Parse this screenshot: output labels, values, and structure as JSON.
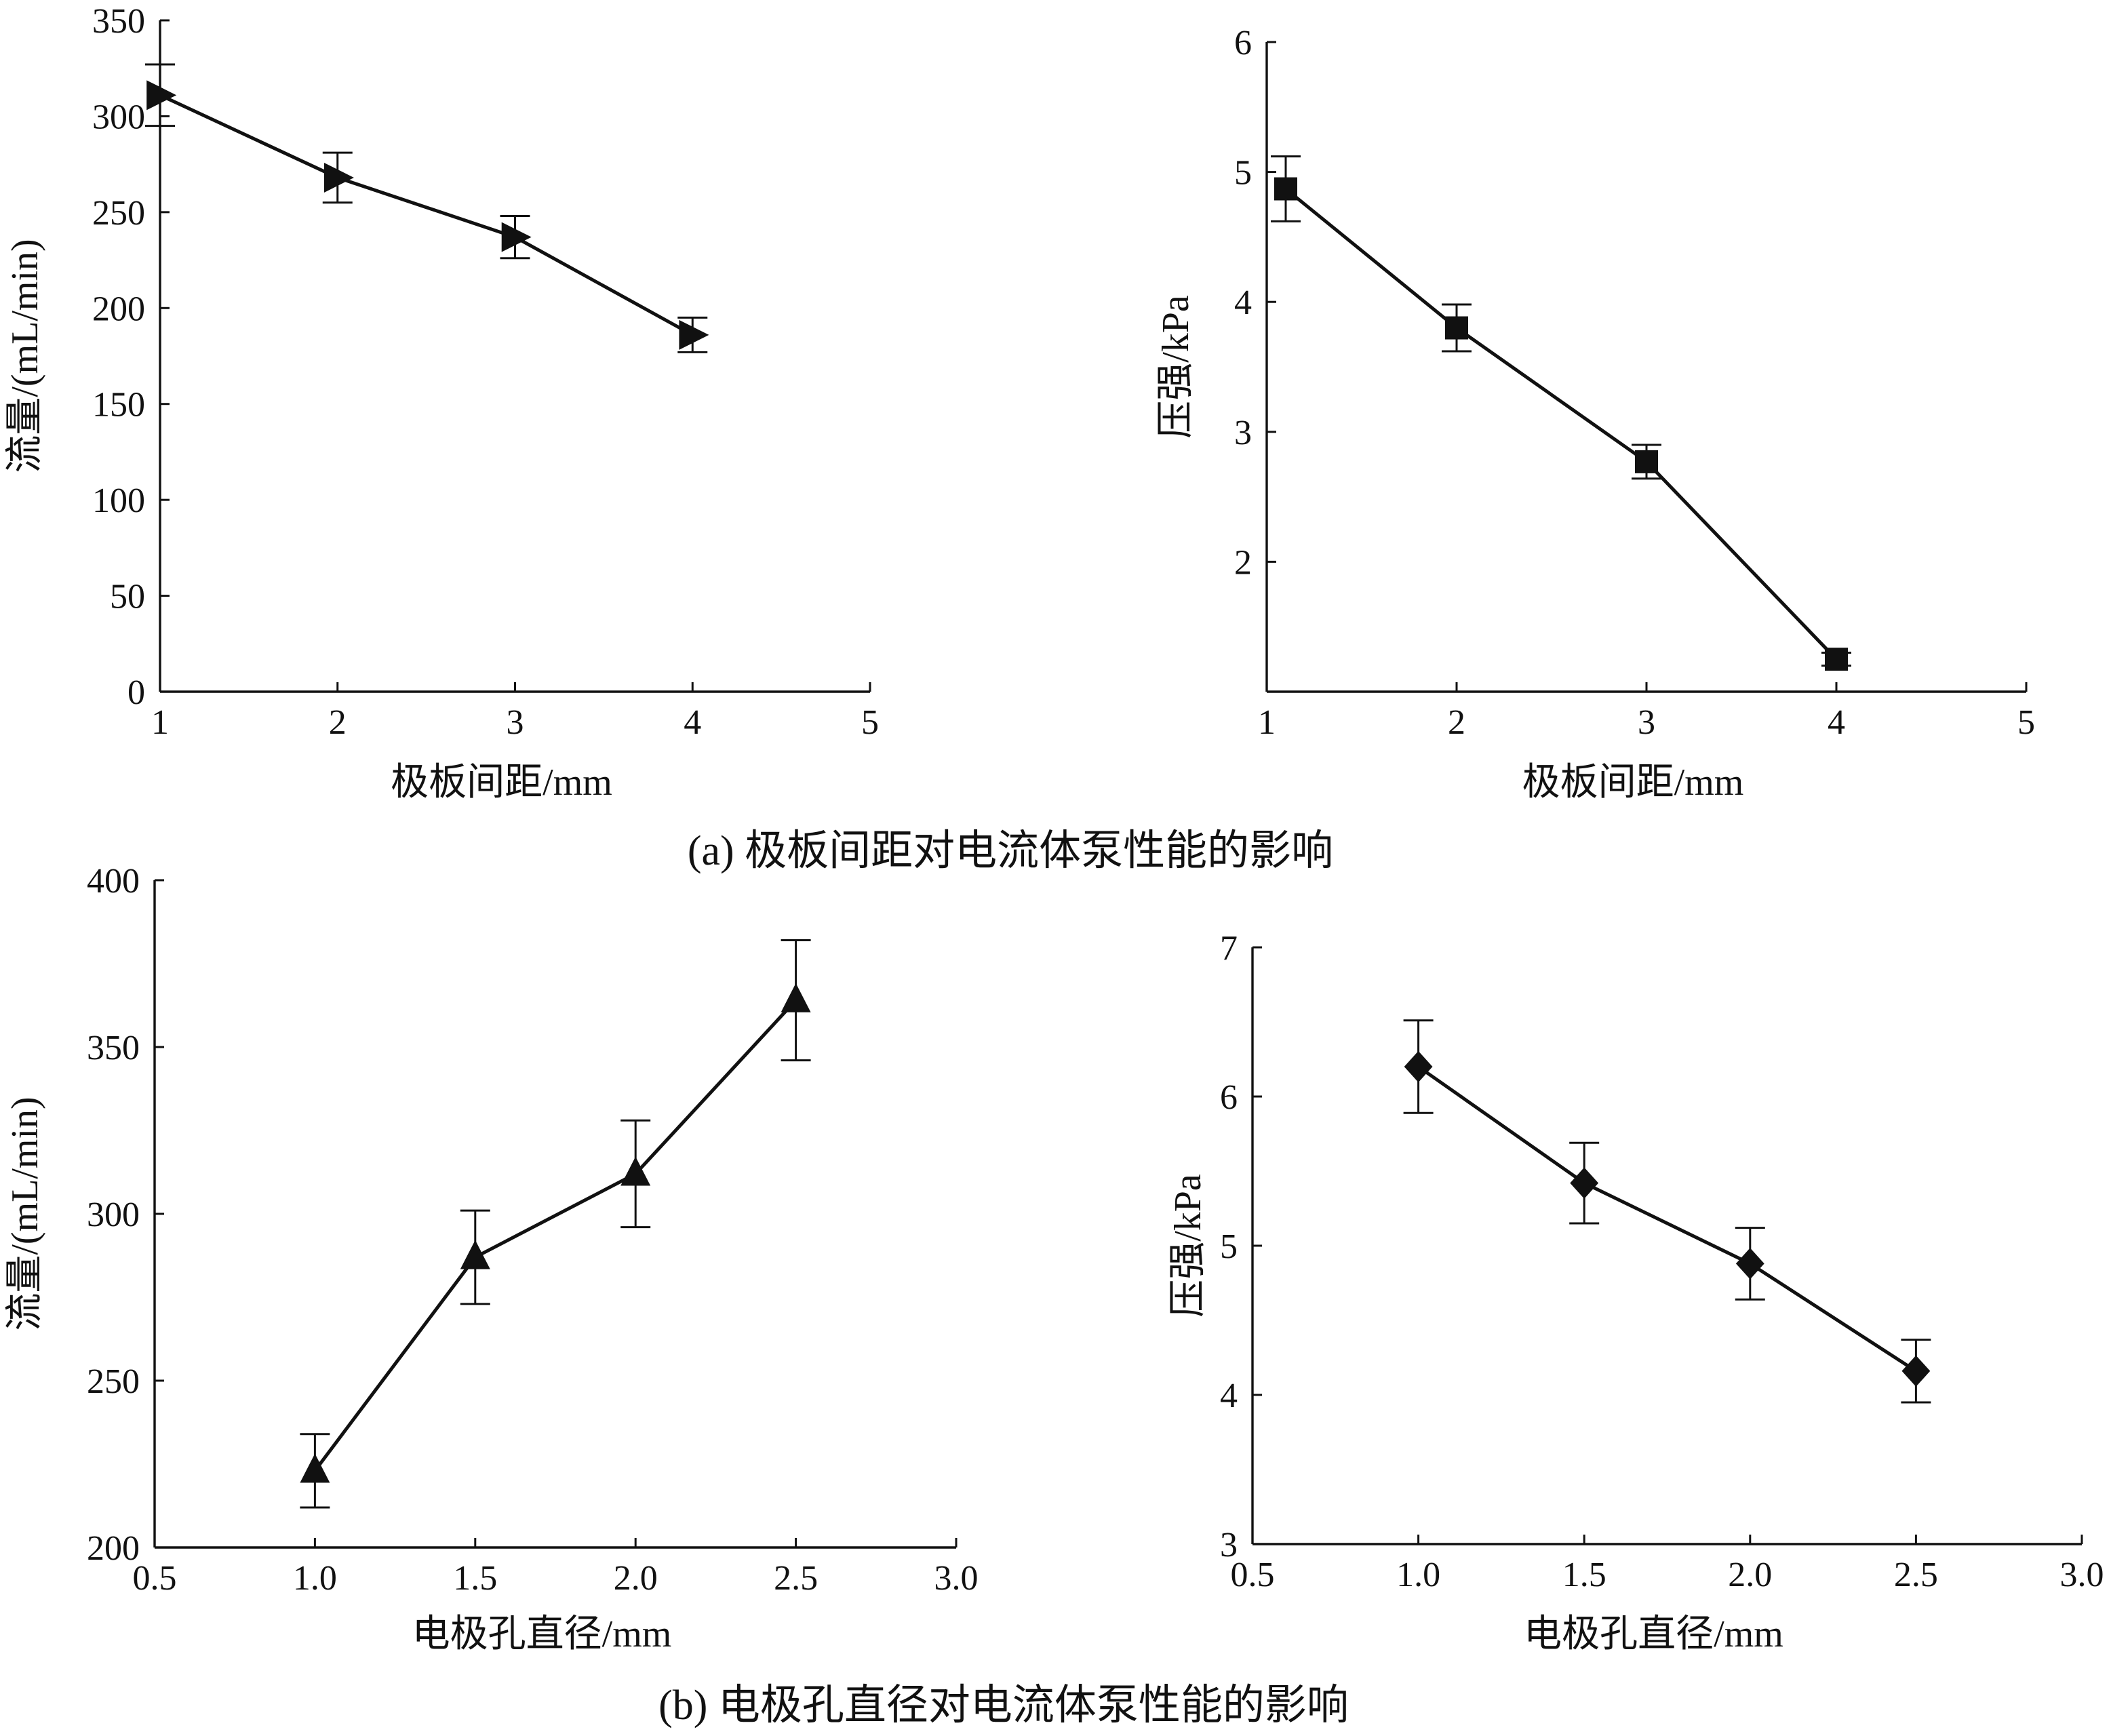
{
  "captions": {
    "a": "(a)  极板间距对电流体泵性能的影响",
    "b": "(b)  电极孔直径对电流体泵性能的影响"
  },
  "chart_data": [
    {
      "id": "a1",
      "type": "line",
      "xlabel": "极板间距/mm",
      "ylabel": "流量/(mL/min)",
      "xlim": [
        1,
        5
      ],
      "ylim": [
        0,
        350
      ],
      "xticks": [
        "1",
        "2",
        "3",
        "4",
        "5"
      ],
      "xtick_values": [
        1,
        2,
        3,
        4,
        5
      ],
      "yticks": [
        "0",
        "50",
        "100",
        "150",
        "200",
        "250",
        "300",
        "350"
      ],
      "ytick_values": [
        0,
        50,
        100,
        150,
        200,
        250,
        300,
        350
      ],
      "marker": "triangle-right",
      "series": [
        {
          "x": [
            1,
            2,
            3,
            4
          ],
          "y": [
            311,
            268,
            237,
            186
          ],
          "err": [
            16,
            13,
            11,
            9
          ]
        }
      ]
    },
    {
      "id": "a2",
      "type": "line",
      "xlabel": "极板间距/mm",
      "ylabel": "压强/kPa",
      "xlim": [
        1,
        5
      ],
      "ylim": [
        1,
        6
      ],
      "xticks": [
        "1",
        "2",
        "3",
        "4",
        "5"
      ],
      "xtick_values": [
        1,
        2,
        3,
        4,
        5
      ],
      "yticks": [
        "2",
        "3",
        "4",
        "5",
        "6"
      ],
      "ytick_values": [
        2,
        3,
        4,
        5,
        6
      ],
      "marker": "square",
      "series": [
        {
          "x": [
            1.1,
            2,
            3,
            4
          ],
          "y": [
            4.87,
            3.8,
            2.77,
            1.25
          ],
          "err": [
            0.25,
            0.18,
            0.13,
            0.05
          ]
        }
      ]
    },
    {
      "id": "b1",
      "type": "line",
      "xlabel": "电极孔直径/mm",
      "ylabel": "流量/(mL/min)",
      "xlim": [
        0.5,
        3.0
      ],
      "ylim": [
        200,
        400
      ],
      "xticks": [
        "0.5",
        "1.0",
        "1.5",
        "2.0",
        "2.5",
        "3.0"
      ],
      "xtick_values": [
        0.5,
        1.0,
        1.5,
        2.0,
        2.5,
        3.0
      ],
      "yticks": [
        "200",
        "250",
        "300",
        "350",
        "400"
      ],
      "ytick_values": [
        200,
        250,
        300,
        350,
        400
      ],
      "marker": "triangle-up",
      "series": [
        {
          "x": [
            1.0,
            1.5,
            2.0,
            2.5
          ],
          "y": [
            223,
            287,
            312,
            364
          ],
          "err": [
            11,
            14,
            16,
            18
          ]
        }
      ]
    },
    {
      "id": "b2",
      "type": "line",
      "xlabel": "电极孔直径/mm",
      "ylabel": "压强/kPa",
      "xlim": [
        0.5,
        3.0
      ],
      "ylim": [
        3,
        7
      ],
      "xticks": [
        "0.5",
        "1.0",
        "1.5",
        "2.0",
        "2.5",
        "3.0"
      ],
      "xtick_values": [
        0.5,
        1.0,
        1.5,
        2.0,
        2.5,
        3.0
      ],
      "yticks": [
        "3",
        "4",
        "5",
        "6",
        "7"
      ],
      "ytick_values": [
        3,
        4,
        5,
        6,
        7
      ],
      "marker": "diamond",
      "series": [
        {
          "x": [
            1.0,
            1.5,
            2.0,
            2.5
          ],
          "y": [
            6.2,
            5.42,
            4.88,
            4.16
          ],
          "err": [
            0.31,
            0.27,
            0.24,
            0.21
          ]
        }
      ]
    }
  ]
}
